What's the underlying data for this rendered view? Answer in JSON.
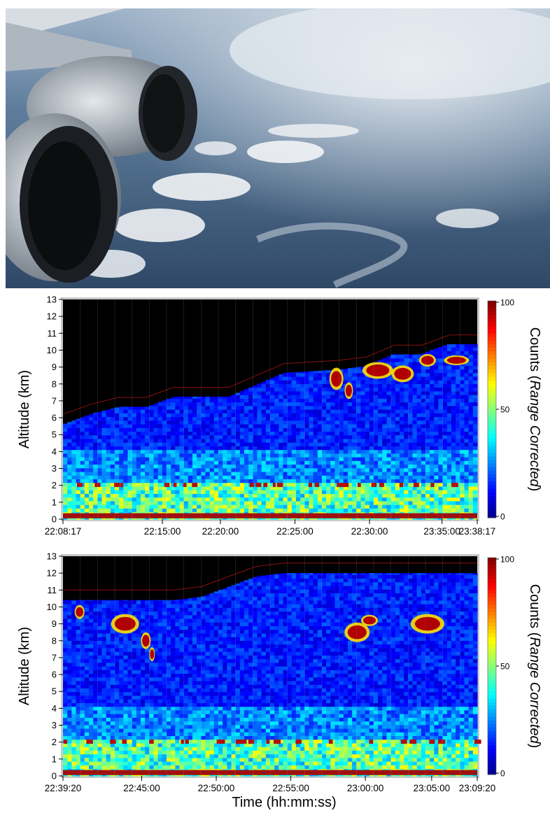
{
  "photo": {
    "description_icon": "aircraft-wing-engine-photo"
  },
  "colorbar": {
    "ticks": [
      "100",
      "50",
      "0"
    ]
  },
  "chart_data": [
    {
      "type": "heatmap",
      "title": "",
      "ylabel": "Altitude (km)",
      "xlabel": "",
      "colorbar_label_prefix": "Counts (",
      "colorbar_label_italic": "Range Corrected",
      "colorbar_label_suffix": ")",
      "colorbar_range": [
        0,
        100
      ],
      "ylim": [
        0,
        13
      ],
      "yticks": [
        "0",
        "1",
        "2",
        "3",
        "4",
        "5",
        "6",
        "7",
        "8",
        "9",
        "10",
        "11",
        "12",
        "13"
      ],
      "xticks": [
        "22:08:17",
        "22:15:00",
        "22:20:00",
        "22:25:00",
        "22:30:00",
        "23:35:00",
        "23:38:17"
      ],
      "flight_altitude_km": [
        6.2,
        6.8,
        7.2,
        7.2,
        7.8,
        7.8,
        7.8,
        8.5,
        9.2,
        9.3,
        9.4,
        9.6,
        10.3,
        10.3,
        10.9,
        10.9
      ],
      "boundary_layer_top_km": 2.0,
      "cloud_layers_km": [
        [
          6.5,
          9.8
        ],
        [
          9.0,
          10.2
        ]
      ]
    },
    {
      "type": "heatmap",
      "title": "",
      "ylabel": "Altitude (km)",
      "xlabel": "Time (hh:mm:ss)",
      "colorbar_label_prefix": "Counts (",
      "colorbar_label_italic": "Range Corrected",
      "colorbar_label_suffix": ")",
      "colorbar_range": [
        0,
        100
      ],
      "ylim": [
        0,
        13
      ],
      "yticks": [
        "0",
        "1",
        "2",
        "3",
        "4",
        "5",
        "6",
        "7",
        "8",
        "9",
        "10",
        "11",
        "12",
        "13"
      ],
      "xticks": [
        "22:39:20",
        "22:45:00",
        "22:50:00",
        "22:55:00",
        "23:00:00",
        "23:05:00",
        "23:09:20"
      ],
      "flight_altitude_km": [
        11.0,
        11.0,
        11.0,
        11.0,
        11.0,
        11.2,
        11.8,
        12.4,
        12.6,
        12.6,
        12.6,
        12.6,
        12.6,
        12.6,
        12.6,
        12.6
      ],
      "boundary_layer_top_km": 2.0,
      "cloud_layers_km": [
        [
          7.0,
          10.2
        ],
        [
          8.0,
          9.6
        ]
      ]
    }
  ]
}
